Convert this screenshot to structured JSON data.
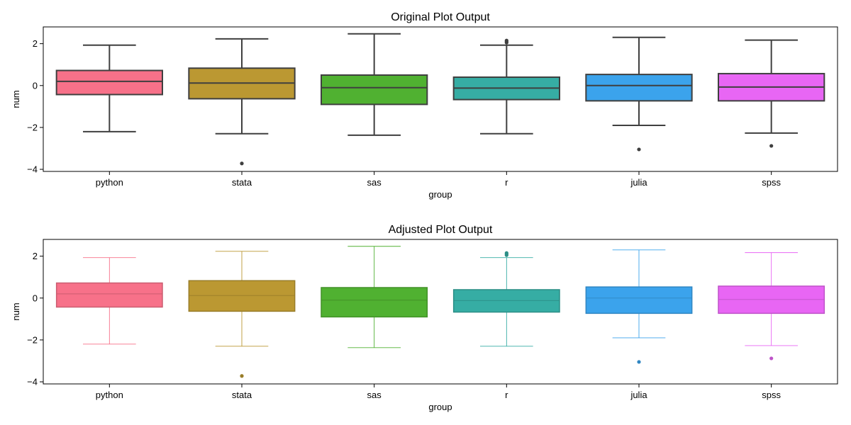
{
  "chart_data": [
    {
      "type": "box",
      "title": "Original Plot Output",
      "xlabel": "group",
      "ylabel": "num",
      "ylim": [
        -4.1,
        2.8
      ],
      "yticks": [
        -4,
        -2,
        0,
        2
      ],
      "ytick_labels": [
        "−4",
        "−2",
        "0",
        "2"
      ],
      "style": "uniform-gray-lines",
      "categories": [
        "python",
        "stata",
        "sas",
        "r",
        "julia",
        "spss"
      ],
      "colors": [
        "#f77189",
        "#bb9832",
        "#50b131",
        "#36ada4",
        "#3ba3ec",
        "#e866f4"
      ],
      "boxes": [
        {
          "name": "python",
          "whisker_low": -2.2,
          "q1": -0.43,
          "median": 0.2,
          "q3": 0.72,
          "whisker_high": 1.93,
          "outliers": []
        },
        {
          "name": "stata",
          "whisker_low": -2.3,
          "q1": -0.63,
          "median": 0.12,
          "q3": 0.83,
          "whisker_high": 2.23,
          "outliers": [
            -3.72
          ]
        },
        {
          "name": "sas",
          "whisker_low": -2.37,
          "q1": -0.9,
          "median": -0.1,
          "q3": 0.5,
          "whisker_high": 2.47,
          "outliers": []
        },
        {
          "name": "r",
          "whisker_low": -2.3,
          "q1": -0.67,
          "median": -0.12,
          "q3": 0.4,
          "whisker_high": 1.93,
          "outliers": [
            2.05,
            2.1,
            2.15
          ]
        },
        {
          "name": "julia",
          "whisker_low": -1.9,
          "q1": -0.73,
          "median": 0.0,
          "q3": 0.53,
          "whisker_high": 2.3,
          "outliers": [
            -3.05
          ]
        },
        {
          "name": "spss",
          "whisker_low": -2.27,
          "q1": -0.73,
          "median": -0.07,
          "q3": 0.57,
          "whisker_high": 2.17,
          "outliers": [
            -2.88
          ]
        }
      ]
    },
    {
      "type": "box",
      "title": "Adjusted Plot Output",
      "xlabel": "group",
      "ylabel": "num",
      "ylim": [
        -4.1,
        2.8
      ],
      "yticks": [
        -4,
        -2,
        0,
        2
      ],
      "ytick_labels": [
        "−4",
        "−2",
        "0",
        "2"
      ],
      "style": "lines-colored-by-group",
      "categories": [
        "python",
        "stata",
        "sas",
        "r",
        "julia",
        "spss"
      ],
      "colors": [
        "#f77189",
        "#bb9832",
        "#50b131",
        "#36ada4",
        "#3ba3ec",
        "#e866f4"
      ],
      "boxes": [
        {
          "name": "python",
          "whisker_low": -2.2,
          "q1": -0.43,
          "median": 0.2,
          "q3": 0.72,
          "whisker_high": 1.93,
          "outliers": []
        },
        {
          "name": "stata",
          "whisker_low": -2.3,
          "q1": -0.63,
          "median": 0.12,
          "q3": 0.83,
          "whisker_high": 2.23,
          "outliers": [
            -3.72
          ]
        },
        {
          "name": "sas",
          "whisker_low": -2.37,
          "q1": -0.9,
          "median": -0.1,
          "q3": 0.5,
          "whisker_high": 2.47,
          "outliers": []
        },
        {
          "name": "r",
          "whisker_low": -2.3,
          "q1": -0.67,
          "median": -0.12,
          "q3": 0.4,
          "whisker_high": 1.93,
          "outliers": [
            2.05,
            2.1,
            2.15
          ]
        },
        {
          "name": "julia",
          "whisker_low": -1.9,
          "q1": -0.73,
          "median": 0.0,
          "q3": 0.53,
          "whisker_high": 2.3,
          "outliers": [
            -3.05
          ]
        },
        {
          "name": "spss",
          "whisker_low": -2.27,
          "q1": -0.73,
          "median": -0.07,
          "q3": 0.57,
          "whisker_high": 2.17,
          "outliers": [
            -2.88
          ]
        }
      ]
    }
  ]
}
